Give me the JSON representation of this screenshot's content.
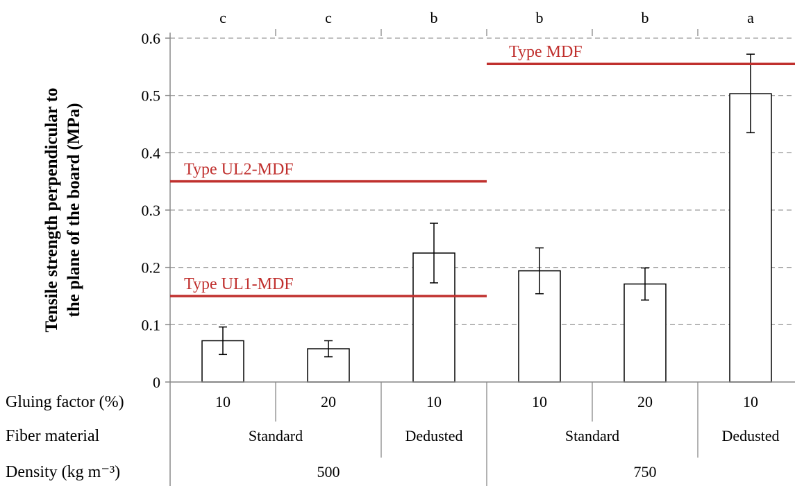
{
  "chart_data": {
    "type": "bar",
    "ylabel_lines": [
      "Tensile strength perpendicular to",
      "the plane of the board (MPa)"
    ],
    "ylim": [
      0,
      0.6
    ],
    "yticks": [
      "0",
      "0.1",
      "0.2",
      "0.3",
      "0.4",
      "0.5",
      "0.6"
    ],
    "grid": true,
    "categories": [
      "10",
      "20",
      "10",
      "10",
      "20",
      "10"
    ],
    "values": [
      0.072,
      0.058,
      0.225,
      0.194,
      0.171,
      0.503
    ],
    "error_low": [
      0.048,
      0.044,
      0.173,
      0.154,
      0.143,
      0.435
    ],
    "error_high": [
      0.096,
      0.072,
      0.277,
      0.234,
      0.199,
      0.572
    ],
    "significance": [
      "c",
      "c",
      "b",
      "b",
      "b",
      "a"
    ],
    "reference_lines": [
      {
        "label": "Type UL1-MDF",
        "value": 0.15,
        "from": 0,
        "to": 3,
        "color": "#c0302e"
      },
      {
        "label": "Type UL2-MDF",
        "value": 0.35,
        "from": 0,
        "to": 3,
        "color": "#c0302e"
      },
      {
        "label": "Type MDF",
        "value": 0.555,
        "from": 3,
        "to": 6,
        "color": "#c0302e"
      }
    ],
    "axis_table": {
      "rows": [
        {
          "label": "Gluing factor (%)",
          "groups": [
            {
              "text": "10",
              "span": 1
            },
            {
              "text": "20",
              "span": 1
            },
            {
              "text": "10",
              "span": 1
            },
            {
              "text": "10",
              "span": 1
            },
            {
              "text": "20",
              "span": 1
            },
            {
              "text": "10",
              "span": 1
            }
          ]
        },
        {
          "label": "Fiber material",
          "groups": [
            {
              "text": "Standard",
              "span": 2
            },
            {
              "text": "Dedusted",
              "span": 1
            },
            {
              "text": "Standard",
              "span": 2
            },
            {
              "text": "Dedusted",
              "span": 1
            }
          ]
        },
        {
          "label": "Density (kg m⁻³)",
          "groups": [
            {
              "text": "500",
              "span": 3
            },
            {
              "text": "750",
              "span": 3
            }
          ]
        }
      ]
    }
  }
}
